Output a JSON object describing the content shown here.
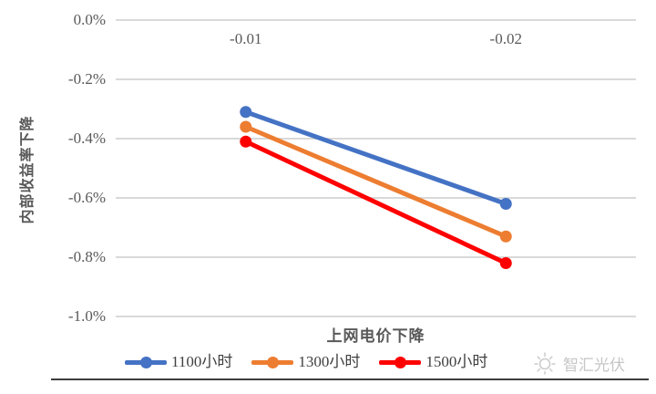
{
  "chart_data": {
    "type": "line",
    "categories": [
      "-0.01",
      "-0.02"
    ],
    "xlabel": "上网电价下降",
    "ylabel": "内部收益率下降",
    "ylim": [
      0,
      -1.0
    ],
    "unit": "%",
    "grid": true,
    "legend_position": "bottom",
    "yticks": [
      {
        "label": "0.0%",
        "value": 0.0
      },
      {
        "label": "-0.2%",
        "value": -0.2
      },
      {
        "label": "-0.4%",
        "value": -0.4
      },
      {
        "label": "-0.6%",
        "value": -0.6
      },
      {
        "label": "-0.8%",
        "value": -0.8
      },
      {
        "label": "-1.0%",
        "value": -1.0
      }
    ],
    "series": [
      {
        "name": "1100小时",
        "color": "#4472C4",
        "values": [
          -0.31,
          -0.62
        ]
      },
      {
        "name": "1300小时",
        "color": "#ED7D31",
        "values": [
          -0.36,
          -0.73
        ]
      },
      {
        "name": "1500小时",
        "color": "#FF0000",
        "values": [
          -0.41,
          -0.82
        ]
      }
    ]
  },
  "colors": {
    "gridline": "#D9D9D9",
    "tick_label": "#595959",
    "axis_title": "#595959",
    "legend_text": "#404040",
    "watermark": "#C6C6C6",
    "divider": "#3D3D3D"
  },
  "watermark": {
    "text": "智汇光伏",
    "icon": "sun-icon"
  }
}
